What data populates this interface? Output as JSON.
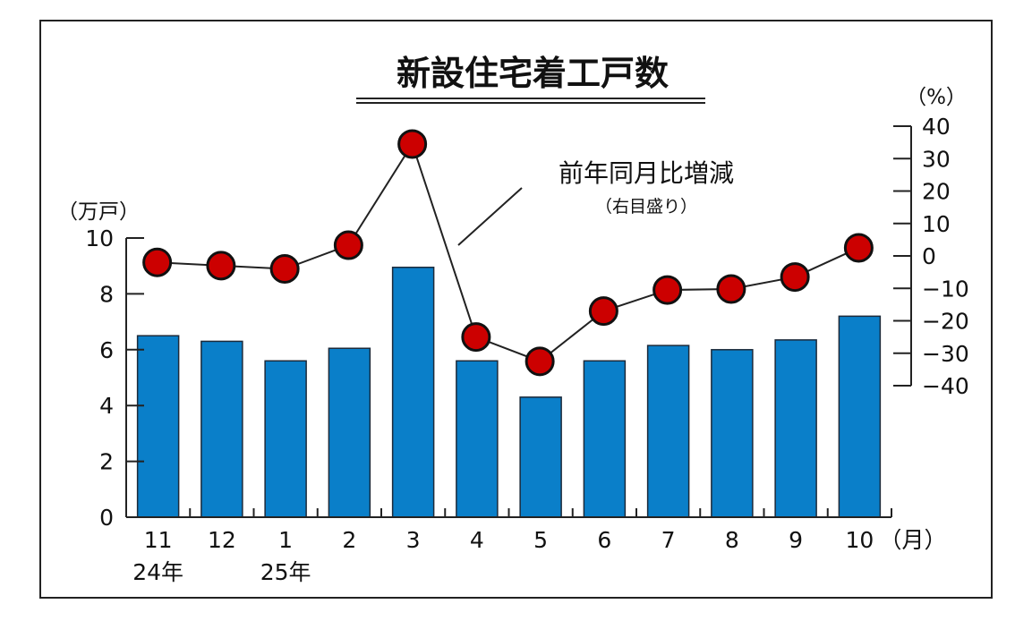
{
  "chart_data": {
    "type": "bar+line",
    "title": "新設住宅着工戸数",
    "categories": [
      "11",
      "12",
      "1",
      "2",
      "3",
      "4",
      "5",
      "6",
      "7",
      "8",
      "9",
      "10"
    ],
    "year_labels": [
      {
        "category_index": 0,
        "text": "24年"
      },
      {
        "category_index": 2,
        "text": "25年"
      }
    ],
    "x_unit": "（月）",
    "left_axis": {
      "unit": "（万戸）",
      "ylim": [
        0,
        10
      ],
      "ticks": [
        "0",
        "2",
        "4",
        "6",
        "8",
        "10"
      ]
    },
    "right_axis": {
      "unit": "（%）",
      "ylim": [
        -40,
        40
      ],
      "ticks": [
        "−40",
        "−30",
        "−20",
        "−10",
        "0",
        "10",
        "20",
        "30",
        "40"
      ]
    },
    "series": [
      {
        "type": "bar",
        "axis": "left",
        "values": [
          6.5,
          6.3,
          5.6,
          6.05,
          8.95,
          5.6,
          4.3,
          5.6,
          6.15,
          6.0,
          6.35,
          7.2
        ]
      },
      {
        "type": "line",
        "axis": "right",
        "name": "前年同月比増減",
        "values": [
          -2.0,
          -3.0,
          -4.0,
          3.3,
          34.5,
          -25.0,
          -32.5,
          -17.0,
          -10.5,
          -10.2,
          -6.5,
          2.5
        ]
      }
    ],
    "annotation": {
      "main": "前年同月比増減",
      "sub": "（右目盛り）"
    },
    "grid": false,
    "colors": {
      "bar": "#0a7fc9",
      "bar_edge": "#1c2a3a",
      "marker": "#cc0000",
      "line": "#222222"
    }
  }
}
